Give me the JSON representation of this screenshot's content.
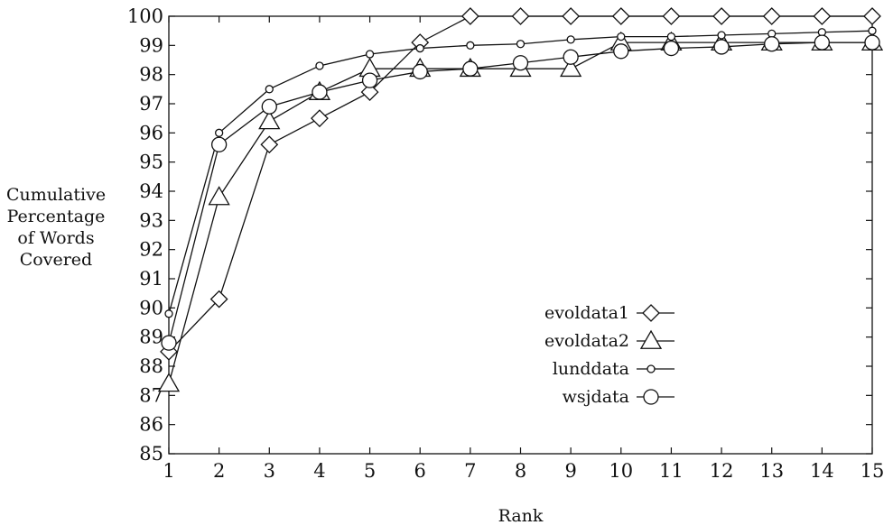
{
  "chart_data": {
    "type": "line",
    "xlabel": "Rank",
    "ylabel_lines": [
      "Cumulative",
      "Percentage",
      "of Words",
      "Covered"
    ],
    "xlim": [
      1,
      15
    ],
    "ylim": [
      85,
      100
    ],
    "xticks": [
      1,
      2,
      3,
      4,
      5,
      6,
      7,
      8,
      9,
      10,
      11,
      12,
      13,
      14,
      15
    ],
    "yticks": [
      85,
      86,
      87,
      88,
      89,
      90,
      91,
      92,
      93,
      94,
      95,
      96,
      97,
      98,
      99,
      100
    ],
    "grid": false,
    "legend_position": "center-right",
    "x": [
      1,
      2,
      3,
      4,
      5,
      6,
      7,
      8,
      9,
      10,
      11,
      12,
      13,
      14,
      15
    ],
    "series": [
      {
        "name": "evoldata1",
        "marker": "diamond",
        "values": [
          88.5,
          90.3,
          95.6,
          96.5,
          97.4,
          99.1,
          100,
          100,
          100,
          100,
          100,
          100,
          100,
          100,
          100
        ]
      },
      {
        "name": "evoldata2",
        "marker": "triangle",
        "values": [
          87.4,
          93.8,
          96.4,
          97.4,
          98.2,
          98.2,
          98.2,
          98.2,
          98.2,
          99.1,
          99.1,
          99.1,
          99.1,
          99.1,
          99.1
        ]
      },
      {
        "name": "lunddata",
        "marker": "small-circle",
        "values": [
          89.8,
          96.0,
          97.5,
          98.3,
          98.7,
          98.9,
          99.0,
          99.05,
          99.2,
          99.3,
          99.3,
          99.35,
          99.4,
          99.45,
          99.5
        ]
      },
      {
        "name": "wsjdata",
        "marker": "circle",
        "values": [
          88.8,
          95.6,
          96.9,
          97.4,
          97.8,
          98.1,
          98.2,
          98.4,
          98.6,
          98.8,
          98.9,
          98.95,
          99.05,
          99.1,
          99.1
        ]
      }
    ]
  }
}
